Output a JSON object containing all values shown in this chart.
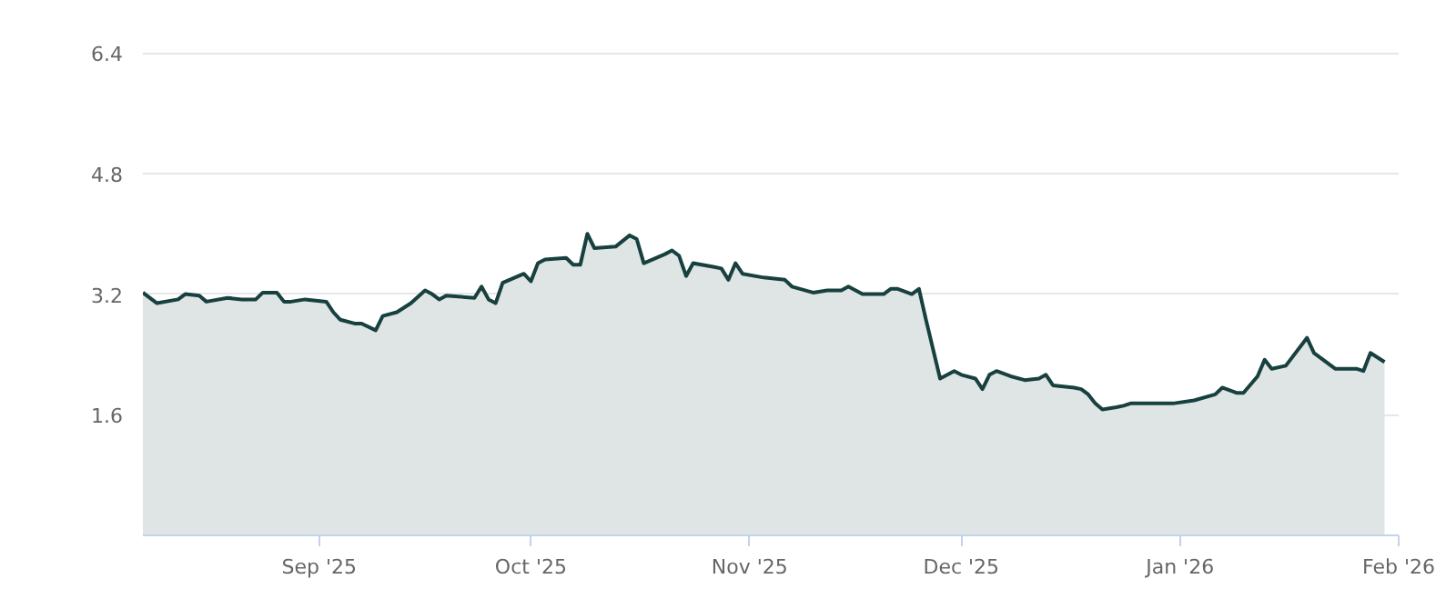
{
  "chart_data": {
    "type": "area",
    "x": [
      "2025-08-07",
      "2025-08-09",
      "2025-08-12",
      "2025-08-13",
      "2025-08-15",
      "2025-08-16",
      "2025-08-19",
      "2025-08-21",
      "2025-08-23",
      "2025-08-24",
      "2025-08-26",
      "2025-08-27",
      "2025-08-28",
      "2025-08-30",
      "2025-09-02",
      "2025-09-03",
      "2025-09-04",
      "2025-09-06",
      "2025-09-07",
      "2025-09-09",
      "2025-09-10",
      "2025-09-12",
      "2025-09-14",
      "2025-09-16",
      "2025-09-17",
      "2025-09-18",
      "2025-09-19",
      "2025-09-23",
      "2025-09-24",
      "2025-09-25",
      "2025-09-26",
      "2025-09-27",
      "2025-09-30",
      "2025-10-01",
      "2025-10-02",
      "2025-10-03",
      "2025-10-06",
      "2025-10-07",
      "2025-10-08",
      "2025-10-09",
      "2025-10-10",
      "2025-10-13",
      "2025-10-15",
      "2025-10-16",
      "2025-10-17",
      "2025-10-20",
      "2025-10-21",
      "2025-10-22",
      "2025-10-23",
      "2025-10-24",
      "2025-10-27",
      "2025-10-28",
      "2025-10-29",
      "2025-10-30",
      "2025-10-31",
      "2025-11-03",
      "2025-11-06",
      "2025-11-07",
      "2025-11-10",
      "2025-11-12",
      "2025-11-14",
      "2025-11-15",
      "2025-11-17",
      "2025-11-20",
      "2025-11-21",
      "2025-11-22",
      "2025-11-24",
      "2025-11-25",
      "2025-11-26",
      "2025-11-28",
      "2025-11-30",
      "2025-12-01",
      "2025-12-03",
      "2025-12-04",
      "2025-12-05",
      "2025-12-06",
      "2025-12-08",
      "2025-12-10",
      "2025-12-12",
      "2025-12-13",
      "2025-12-14",
      "2025-12-17",
      "2025-12-18",
      "2025-12-19",
      "2025-12-20",
      "2025-12-21",
      "2025-12-23",
      "2025-12-24",
      "2025-12-25",
      "2025-12-31",
      "2026-01-03",
      "2026-01-06",
      "2026-01-07",
      "2026-01-09",
      "2026-01-10",
      "2026-01-12",
      "2026-01-13",
      "2026-01-14",
      "2026-01-16",
      "2026-01-19",
      "2026-01-20",
      "2026-01-23",
      "2026-01-26",
      "2026-01-27",
      "2026-01-28",
      "2026-01-30"
    ],
    "series": [
      {
        "color": "#17403f",
        "values": [
          3.22,
          3.08,
          3.13,
          3.2,
          3.18,
          3.1,
          3.15,
          3.13,
          3.13,
          3.22,
          3.22,
          3.1,
          3.1,
          3.13,
          3.1,
          2.96,
          2.86,
          2.81,
          2.81,
          2.72,
          2.91,
          2.96,
          3.08,
          3.25,
          3.2,
          3.13,
          3.18,
          3.15,
          3.3,
          3.13,
          3.08,
          3.35,
          3.47,
          3.37,
          3.61,
          3.66,
          3.68,
          3.59,
          3.59,
          4.0,
          3.81,
          3.83,
          3.98,
          3.93,
          3.61,
          3.73,
          3.78,
          3.71,
          3.44,
          3.61,
          3.56,
          3.54,
          3.39,
          3.61,
          3.47,
          3.42,
          3.39,
          3.3,
          3.22,
          3.25,
          3.25,
          3.3,
          3.2,
          3.2,
          3.27,
          3.27,
          3.2,
          3.27,
          2.86,
          2.08,
          2.18,
          2.13,
          2.08,
          1.94,
          2.13,
          2.18,
          2.11,
          2.06,
          2.08,
          2.13,
          1.99,
          1.96,
          1.94,
          1.87,
          1.75,
          1.67,
          1.7,
          1.72,
          1.75,
          1.75,
          1.79,
          1.87,
          1.96,
          1.89,
          1.89,
          2.11,
          2.33,
          2.21,
          2.25,
          2.62,
          2.42,
          2.21,
          2.21,
          2.18,
          2.42,
          2.3
        ]
      }
    ],
    "xlim": [
      "2025-08-07",
      "2026-02-01"
    ],
    "xticks": [
      {
        "value": "2025-09-01",
        "label": "Sep '25"
      },
      {
        "value": "2025-10-01",
        "label": "Oct '25"
      },
      {
        "value": "2025-11-01",
        "label": "Nov '25"
      },
      {
        "value": "2025-12-01",
        "label": "Dec '25"
      },
      {
        "value": "2026-01-01",
        "label": "Jan '26"
      },
      {
        "value": "2026-02-01",
        "label": "Feb '26"
      }
    ],
    "ylim": [
      0,
      6.4
    ],
    "yticks": [
      1.6,
      3.2,
      4.8,
      6.4
    ],
    "grid": "y"
  }
}
